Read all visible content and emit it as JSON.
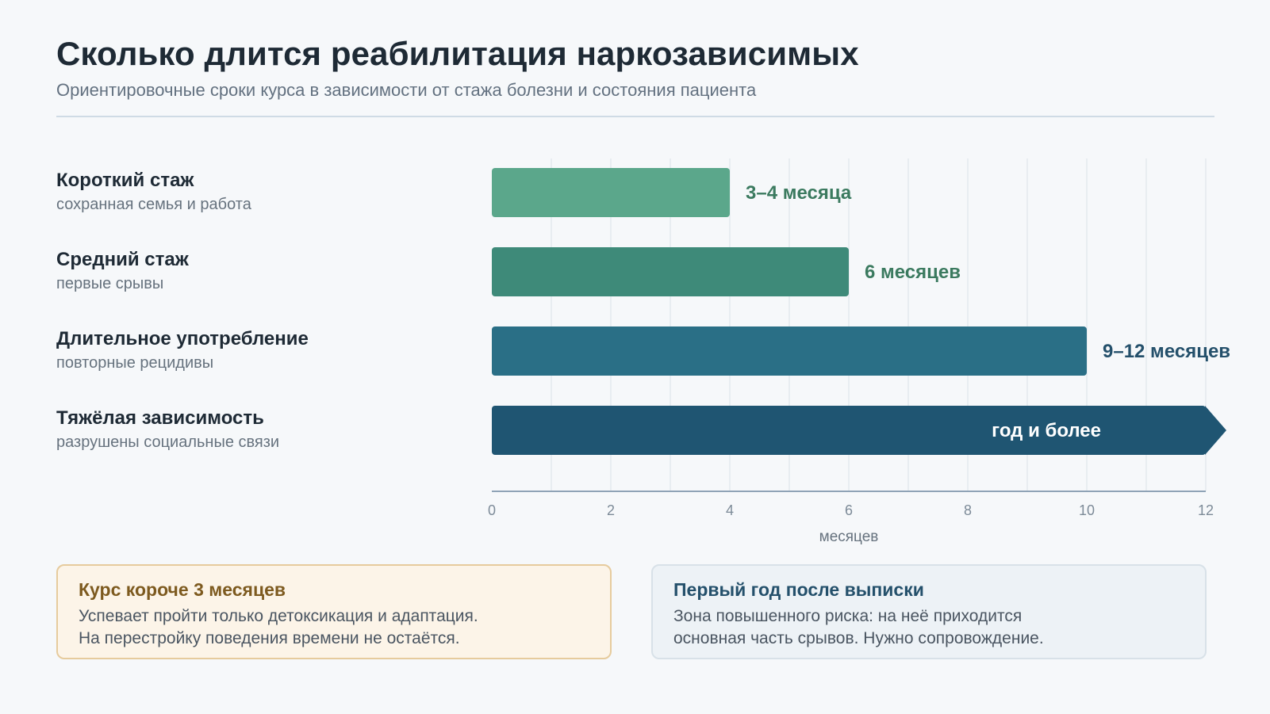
{
  "header": {
    "title": "Сколько длится реабилитация наркозависимых",
    "subtitle": "Ориентировочные сроки курса в зависимости от стажа болезни и состояния пациента"
  },
  "rows": [
    {
      "name": "Короткий стаж",
      "description": "сохранная семья и работа"
    },
    {
      "name": "Средний стаж",
      "description": "первые срывы"
    },
    {
      "name": "Длительное употребление",
      "description": "повторные рецидивы"
    },
    {
      "name": "Тяжёлая зависимость",
      "description": "разрушены социальные связи"
    }
  ],
  "chart_data": {
    "type": "bar",
    "orientation": "horizontal",
    "categories": [
      "Короткий стаж",
      "Средний стаж",
      "Длительное употребление",
      "Тяжёлая зависимость"
    ],
    "values": [
      4,
      6,
      10,
      12
    ],
    "value_labels": [
      "3–4 месяца",
      "6 месяцев",
      "9–12 месяцев",
      "год и более"
    ],
    "open_ended": [
      false,
      false,
      false,
      true
    ],
    "colors": [
      "#5ba78b",
      "#3e8a79",
      "#2a6f86",
      "#1f5572"
    ],
    "label_colors": [
      "#3b7a5f",
      "#3b7a5f",
      "#24506b",
      "#ffffff"
    ],
    "xlabel": "месяцев",
    "xlim": [
      0,
      12
    ],
    "xticks": [
      0,
      2,
      4,
      6,
      8,
      10,
      12
    ],
    "grid": true
  },
  "notes": [
    {
      "title": "Курс короче 3 месяцев",
      "line1": "Успевает пройти только детоксикация и адаптация.",
      "line2": "На перестройку поведения времени не остаётся."
    },
    {
      "title": "Первый год после выписки",
      "line1": "Зона повышенного риска: на неё приходится",
      "line2": "основная часть срывов. Нужно сопровождение."
    }
  ]
}
